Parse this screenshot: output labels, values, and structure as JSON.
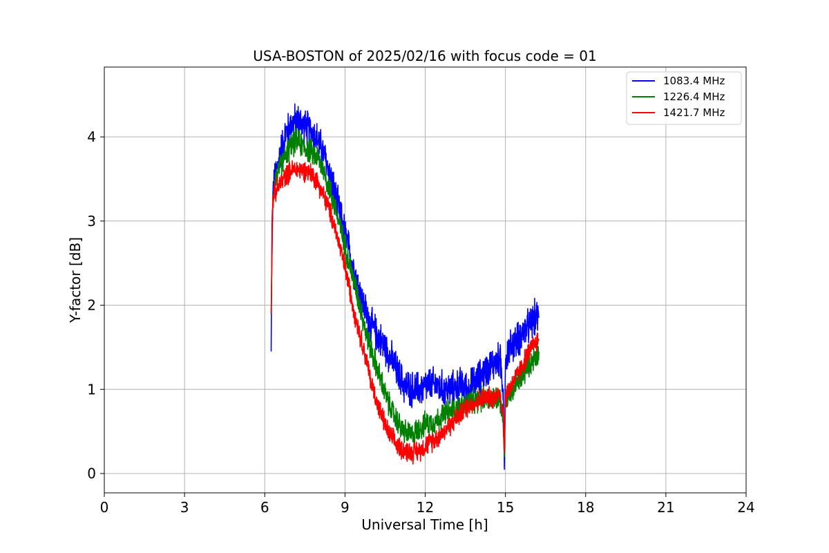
{
  "chart_data": {
    "type": "line",
    "title": "USA-BOSTON of 2025/02/16 with focus code = 01",
    "xlabel": "Universal Time [h]",
    "ylabel": "Y-factor [dB]",
    "xlim": [
      0,
      24
    ],
    "ylim": [
      -0.23,
      4.83
    ],
    "xticks": [
      "0",
      "3",
      "6",
      "9",
      "12",
      "15",
      "18",
      "21",
      "24"
    ],
    "yticks": [
      "0",
      "1",
      "2",
      "3",
      "4"
    ],
    "grid": true,
    "legend_position": "top-right",
    "series": [
      {
        "name": "1083.4 MHz",
        "color": "#0000ff",
        "noise": 0.17,
        "x": [
          6.24,
          6.27,
          6.32,
          6.45,
          6.6,
          6.8,
          7.0,
          7.2,
          7.4,
          7.6,
          7.8,
          8.0,
          8.2,
          8.4,
          8.6,
          8.8,
          9.0,
          9.2,
          9.4,
          9.6,
          9.8,
          10.0,
          10.3,
          10.6,
          10.9,
          11.2,
          11.5,
          11.8,
          12.1,
          12.4,
          12.7,
          13.0,
          13.3,
          13.6,
          13.9,
          14.2,
          14.5,
          14.8,
          14.92,
          14.96,
          15.0,
          15.1,
          15.3,
          15.5,
          15.7,
          15.9,
          16.1,
          16.25
        ],
        "y": [
          1.45,
          2.9,
          3.4,
          3.6,
          3.85,
          4.05,
          4.15,
          4.2,
          4.15,
          4.1,
          4.05,
          3.95,
          3.8,
          3.6,
          3.35,
          3.1,
          2.85,
          2.6,
          2.35,
          2.1,
          1.9,
          1.75,
          1.6,
          1.45,
          1.25,
          1.05,
          1.0,
          1.0,
          1.05,
          1.05,
          1.0,
          1.0,
          1.05,
          1.0,
          1.1,
          1.2,
          1.3,
          1.35,
          1.0,
          0.05,
          1.35,
          1.45,
          1.55,
          1.6,
          1.7,
          1.75,
          1.85,
          1.85
        ]
      },
      {
        "name": "1226.4 MHz",
        "color": "#008000",
        "noise": 0.12,
        "x": [
          6.24,
          6.3,
          6.4,
          6.6,
          6.8,
          7.0,
          7.2,
          7.4,
          7.6,
          7.8,
          8.0,
          8.2,
          8.4,
          8.6,
          8.8,
          9.0,
          9.2,
          9.4,
          9.6,
          9.8,
          10.0,
          10.3,
          10.6,
          10.9,
          11.2,
          11.5,
          11.8,
          12.1,
          12.4,
          12.7,
          13.0,
          13.3,
          13.6,
          13.9,
          14.2,
          14.5,
          14.8,
          14.92,
          14.96,
          15.0,
          15.2,
          15.5,
          15.8,
          16.0,
          16.25
        ],
        "y": [
          1.9,
          3.3,
          3.5,
          3.65,
          3.8,
          3.9,
          3.95,
          3.9,
          3.85,
          3.8,
          3.75,
          3.6,
          3.4,
          3.2,
          2.95,
          2.7,
          2.45,
          2.2,
          1.95,
          1.65,
          1.45,
          1.15,
          0.85,
          0.65,
          0.5,
          0.45,
          0.55,
          0.6,
          0.62,
          0.7,
          0.75,
          0.78,
          0.85,
          0.85,
          0.9,
          0.9,
          0.9,
          0.6,
          0.2,
          0.85,
          0.95,
          1.1,
          1.25,
          1.35,
          1.45
        ]
      },
      {
        "name": "1421.7 MHz",
        "color": "#ff0000",
        "noise": 0.1,
        "x": [
          6.24,
          6.3,
          6.4,
          6.6,
          6.8,
          7.0,
          7.2,
          7.4,
          7.6,
          7.8,
          8.0,
          8.2,
          8.4,
          8.6,
          8.8,
          9.0,
          9.2,
          9.4,
          9.6,
          9.8,
          10.0,
          10.3,
          10.6,
          10.9,
          11.2,
          11.5,
          11.8,
          12.1,
          12.4,
          12.7,
          13.0,
          13.3,
          13.6,
          13.9,
          14.2,
          14.5,
          14.8,
          14.92,
          14.96,
          15.0,
          15.2,
          15.5,
          15.8,
          16.0,
          16.25
        ],
        "y": [
          1.9,
          3.25,
          3.35,
          3.45,
          3.55,
          3.6,
          3.62,
          3.6,
          3.6,
          3.55,
          3.45,
          3.3,
          3.15,
          2.95,
          2.7,
          2.45,
          2.15,
          1.85,
          1.6,
          1.35,
          1.05,
          0.75,
          0.5,
          0.35,
          0.28,
          0.25,
          0.28,
          0.35,
          0.42,
          0.5,
          0.6,
          0.7,
          0.8,
          0.85,
          0.9,
          0.9,
          0.95,
          0.7,
          0.25,
          0.9,
          1.05,
          1.2,
          1.4,
          1.5,
          1.6
        ]
      }
    ]
  }
}
